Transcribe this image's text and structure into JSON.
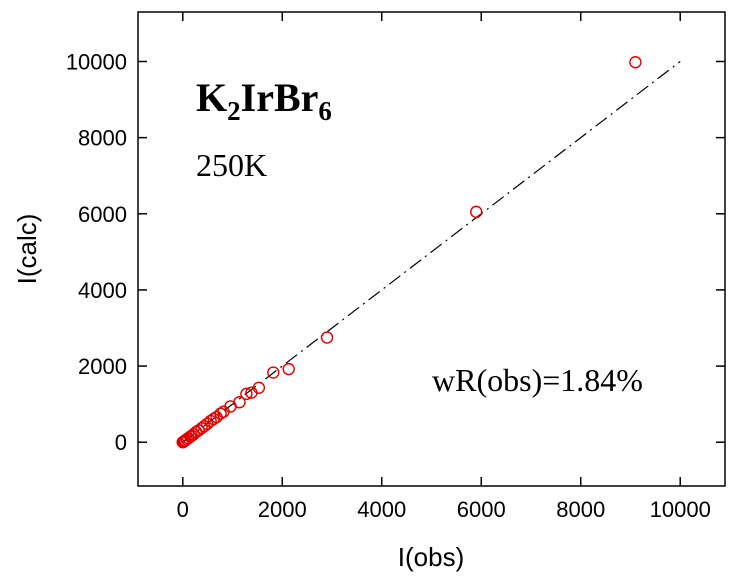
{
  "chart_data": {
    "type": "scatter",
    "xlabel": "I(obs)",
    "ylabel": "I(calc)",
    "xlim": [
      -900,
      10900
    ],
    "ylim": [
      -1150,
      11300
    ],
    "x_ticks": [
      0,
      2000,
      4000,
      6000,
      8000,
      10000
    ],
    "y_ticks": [
      0,
      2000,
      4000,
      6000,
      8000,
      10000
    ],
    "x_tick_labels": [
      "0",
      "2000",
      "4000",
      "6000",
      "8000",
      "10000"
    ],
    "y_tick_labels": [
      "0",
      "2000",
      "4000",
      "6000",
      "8000",
      "10000"
    ],
    "grid": false,
    "reference_line": {
      "style": "dash-dot",
      "from": [
        0,
        0
      ],
      "to": [
        10000,
        10000
      ],
      "color": "#000000"
    },
    "marker": {
      "shape": "open-circle",
      "color": "#e00000"
    },
    "annotations": {
      "compound_main": "K",
      "compound_sub1": "2",
      "compound_mid": "IrBr",
      "compound_sub2": "6",
      "temperature": "250K",
      "wr": "wR(obs)=1.84%"
    },
    "series": [
      {
        "points": [
          [
            9100,
            9980
          ],
          [
            5900,
            6050
          ],
          [
            2900,
            2750
          ],
          [
            2130,
            1920
          ],
          [
            1820,
            1830
          ],
          [
            1530,
            1430
          ],
          [
            1380,
            1300
          ],
          [
            1280,
            1270
          ],
          [
            1140,
            1050
          ],
          [
            960,
            940
          ],
          [
            820,
            800
          ],
          [
            760,
            750
          ],
          [
            680,
            660
          ],
          [
            620,
            610
          ],
          [
            560,
            560
          ],
          [
            490,
            480
          ],
          [
            430,
            420
          ],
          [
            380,
            370
          ],
          [
            320,
            310
          ],
          [
            270,
            270
          ],
          [
            220,
            210
          ],
          [
            180,
            170
          ],
          [
            150,
            145
          ],
          [
            110,
            105
          ],
          [
            80,
            75
          ],
          [
            50,
            45
          ],
          [
            30,
            28
          ],
          [
            15,
            12
          ],
          [
            5,
            4
          ],
          [
            0,
            0
          ]
        ]
      }
    ]
  }
}
